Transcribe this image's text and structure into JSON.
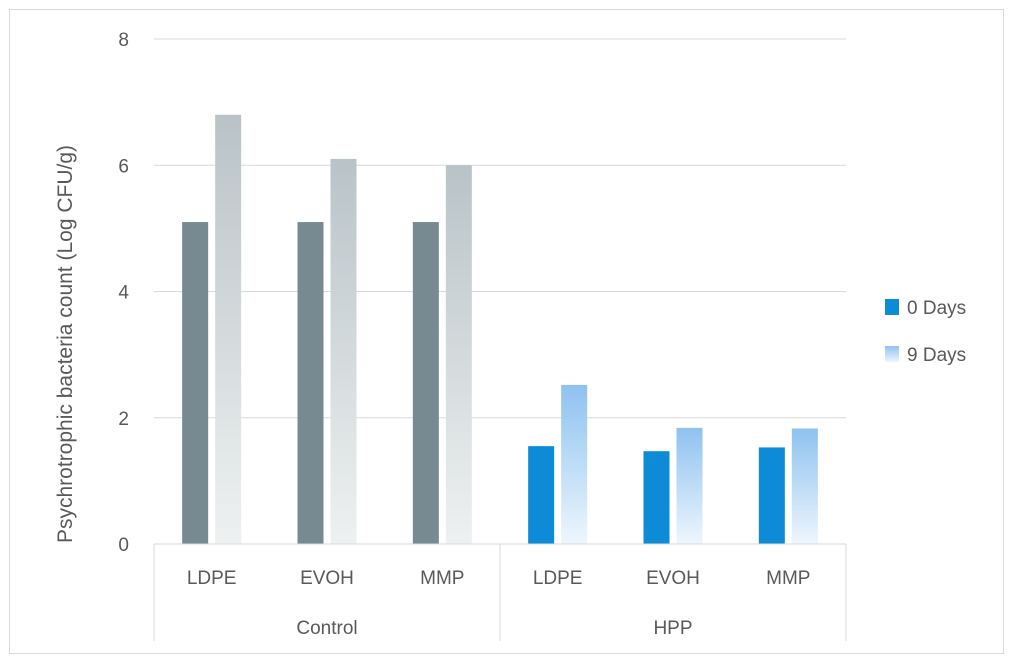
{
  "chart_data": {
    "type": "bar",
    "ylabel": "Psychrotrophic bacteria count (Log CFU/g)",
    "xlabel": "",
    "ylim": [
      0,
      8
    ],
    "yticks": [
      0,
      2,
      4,
      6,
      8
    ],
    "grid": true,
    "legend_position": "right",
    "groups": [
      "Control",
      "HPP"
    ],
    "categories": [
      "LDPE",
      "EVOH",
      "MMP",
      "LDPE",
      "EVOH",
      "MMP"
    ],
    "category_group": [
      0,
      0,
      0,
      1,
      1,
      1
    ],
    "series": [
      {
        "name": "0 Days",
        "values": [
          5.1,
          5.1,
          5.1,
          1.55,
          1.47,
          1.53
        ]
      },
      {
        "name": "9 Days",
        "values": [
          6.8,
          6.1,
          6.0,
          2.52,
          1.84,
          1.83
        ]
      }
    ],
    "colors": {
      "control_0_days": "#778991",
      "control_9_days_top": "#b9c3c7",
      "control_9_days_bottom": "#eef1f1",
      "hpp_0_days": "#0d8bd6",
      "hpp_9_days_top": "#8ec2f0",
      "hpp_9_days_bottom": "#eef6fd",
      "gridline": "#d9d9d9",
      "text": "#595959"
    }
  }
}
